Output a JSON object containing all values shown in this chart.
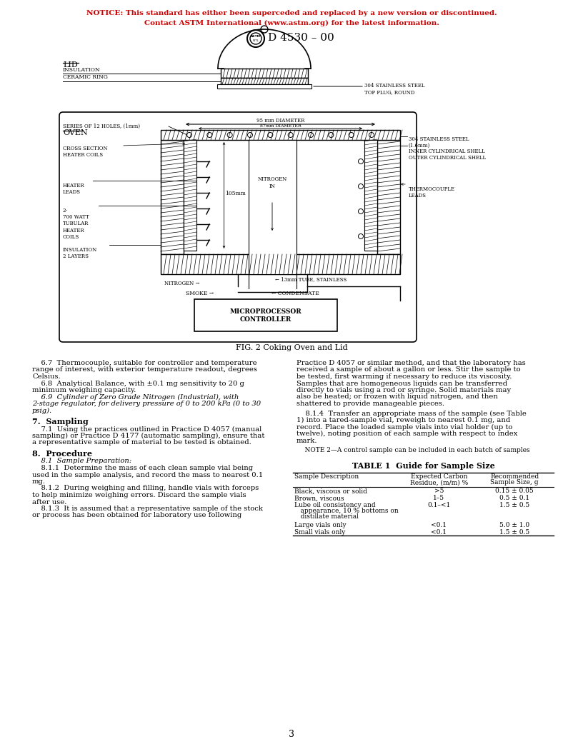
{
  "notice_line1": "NOTICE: This standard has either been superceded and replaced by a new version or discontinued.",
  "notice_line2": "Contact ASTM International (www.astm.org) for the latest information.",
  "doc_number": "D 4530 – 00",
  "fig_caption": "FIG. 2 Coking Oven and Lid",
  "page_number": "3",
  "notice_color": "#cc0000",
  "text_color": "#000000",
  "background_color": "#ffffff",
  "table_title": "TABLE 1  Guide for Sample Size",
  "table_headers": [
    "Sample Description",
    "Expected Carbon\nResidue, (m/m) %",
    "Recommended\nSample Size, g"
  ],
  "table_rows": [
    [
      "Black, viscous or solid",
      ">5",
      "0.15 ± 0.05"
    ],
    [
      "Brown, viscous",
      "1–5",
      "0.5 ± 0.1"
    ],
    [
      "Lube oil consistency and\n   appearance, 10 % bottoms on\n   distillate material",
      "0.1–<1",
      "1.5 ± 0.5"
    ],
    [
      "Large vials only",
      "<0.1",
      "5.0 ± 1.0"
    ],
    [
      "Small vials only",
      "<0.1",
      "1.5 ± 0.5"
    ]
  ],
  "left_texts": [
    [
      7.2,
      "normal",
      "normal",
      "    6.7  Thermocouple, suitable for controller and temperature\nrange of interest, with exterior temperature readout, degrees\nCelsius."
    ],
    [
      7.2,
      "normal",
      "normal",
      "    6.8  Analytical Balance, with ±0.1 mg sensitivity to 20 g\nminimum weighing capacity."
    ],
    [
      7.2,
      "italic",
      "normal",
      "    6.9  Cylinder of Zero Grade Nitrogen (Industrial), with\n2-stage regulator, for delivery pressure of 0 to 200 kPa (0 to 30\npsig)."
    ],
    [
      8.0,
      "normal",
      "bold",
      "7.  Sampling"
    ],
    [
      7.2,
      "normal",
      "normal",
      "    7.1  Using the practices outlined in Practice D 4057 (manual\nsampling) or Practice D 4177 (automatic sampling), ensure that\na representative sample of material to be tested is obtained."
    ],
    [
      8.0,
      "normal",
      "bold",
      "8.  Procedure"
    ],
    [
      7.2,
      "italic",
      "normal",
      "    8.1  Sample Preparation:"
    ],
    [
      7.2,
      "normal",
      "normal",
      "    8.1.1  Determine the mass of each clean sample vial being\nused in the sample analysis, and record the mass to nearest 0.1\nmg."
    ],
    [
      7.2,
      "normal",
      "normal",
      "    8.1.2  During weighing and filling, handle vials with forceps\nto help minimize weighing errors. Discard the sample vials\nafter use."
    ],
    [
      7.2,
      "normal",
      "normal",
      "    8.1.3  It is assumed that a representative sample of the stock\nor process has been obtained for laboratory use following"
    ]
  ],
  "right_texts": [
    [
      7.2,
      "normal",
      "normal",
      "Practice D 4057 or similar method, and that the laboratory has\nreceived a sample of about a gallon or less. Stir the sample to\nbe tested, first warming if necessary to reduce its viscosity.\nSamples that are homogeneous liquids can be transferred\ndirectly to vials using a rod or syringe. Solid materials may\nalso be heated; or frozen with liquid nitrogen, and then\nshattered to provide manageable pieces."
    ],
    [
      7.2,
      "normal",
      "normal",
      "    8.1.4  Transfer an appropriate mass of the sample (see Table\n1) into a tared-sample vial, reweigh to nearest 0.1 mg, and\nrecord. Place the loaded sample vials into vial holder (up to\ntwelve), noting position of each sample with respect to index\nmark."
    ],
    [
      6.5,
      "normal",
      "normal",
      "    NOTE 2—A control sample can be included in each batch of samples"
    ]
  ]
}
